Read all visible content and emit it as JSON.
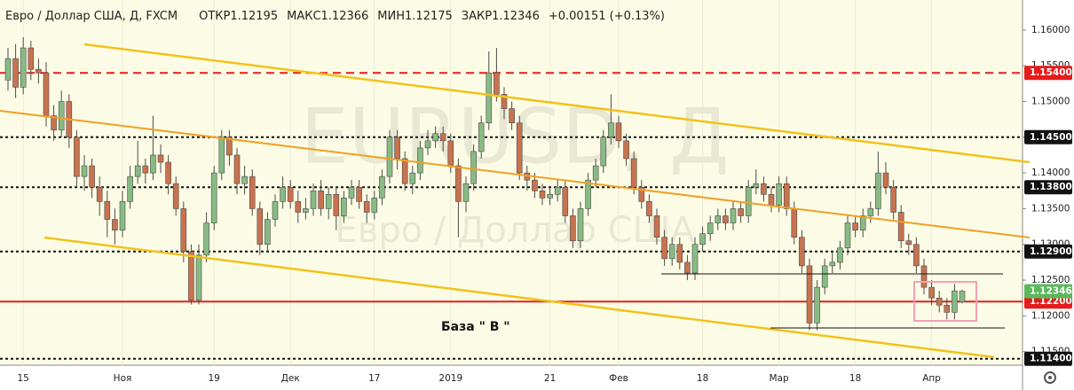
{
  "chart_data": {
    "type": "candlestick",
    "title": "Евро / Доллар США, Д, FXCM",
    "ohlc_labels": [
      "ОТКР",
      "МАКС",
      "МИН",
      "ЗАКР"
    ],
    "change_label": "+0.00151 (+0.13%)",
    "watermark": "EURUSD, Д",
    "watermark_sub": "Евро / Доллар США",
    "annotation": "База \" В \"",
    "categories": [
      null,
      null,
      "15",
      null,
      null,
      null,
      null,
      null,
      null,
      null,
      null,
      null,
      null,
      null,
      null,
      "Ноя",
      null,
      null,
      null,
      null,
      null,
      null,
      null,
      null,
      null,
      null,
      null,
      "19",
      null,
      null,
      null,
      null,
      null,
      null,
      null,
      null,
      null,
      "Дек",
      null,
      null,
      null,
      null,
      null,
      null,
      null,
      null,
      null,
      null,
      "17",
      null,
      null,
      null,
      null,
      null,
      null,
      null,
      null,
      null,
      "2019",
      null,
      null,
      null,
      null,
      null,
      null,
      null,
      null,
      null,
      null,
      null,
      null,
      "21",
      null,
      null,
      null,
      null,
      null,
      null,
      null,
      null,
      "Фев",
      null,
      null,
      null,
      null,
      null,
      null,
      null,
      null,
      null,
      null,
      "18",
      null,
      null,
      null,
      null,
      null,
      null,
      null,
      null,
      null,
      "Мар",
      null,
      null,
      null,
      null,
      null,
      null,
      null,
      null,
      null,
      "18",
      null,
      null,
      null,
      null,
      null,
      null,
      null,
      null,
      null,
      "Апр",
      null,
      null,
      null,
      null
    ],
    "open": [
      1.153,
      1.156,
      1.152,
      1.1575,
      1.1545,
      1.154,
      1.148,
      1.146,
      1.15,
      1.145,
      1.1395,
      1.141,
      1.138,
      1.136,
      1.1335,
      1.132,
      1.136,
      1.1395,
      1.141,
      1.14,
      1.1425,
      1.1415,
      1.1385,
      1.135,
      1.129,
      1.1222,
      1.1285,
      1.133,
      1.14,
      1.145,
      1.1425,
      1.1385,
      1.1395,
      1.135,
      1.13,
      1.1335,
      1.136,
      1.138,
      1.136,
      1.1345,
      1.135,
      1.1375,
      1.135,
      1.137,
      1.134,
      1.1365,
      1.138,
      1.136,
      1.1345,
      1.1365,
      1.1395,
      1.145,
      1.142,
      1.1385,
      1.14,
      1.1435,
      1.1445,
      1.1455,
      1.1445,
      1.141,
      1.136,
      1.1385,
      1.143,
      1.147,
      1.154,
      1.151,
      1.149,
      1.147,
      1.14,
      1.139,
      1.1375,
      1.1365,
      1.137,
      1.138,
      1.134,
      1.1305,
      1.135,
      1.139,
      1.141,
      1.145,
      1.147,
      1.1445,
      1.142,
      1.138,
      1.136,
      1.134,
      1.131,
      1.128,
      1.13,
      1.1275,
      1.126,
      1.13,
      1.1315,
      1.133,
      1.134,
      1.133,
      1.135,
      1.134,
      1.138,
      1.1385,
      1.137,
      1.1355,
      1.1385,
      1.135,
      1.131,
      1.127,
      1.119,
      1.124,
      1.127,
      1.1275,
      1.1295,
      1.133,
      1.132,
      1.134,
      1.135,
      1.14,
      1.138,
      1.1345,
      1.1305,
      1.13,
      1.127,
      1.124,
      1.1225,
      1.1215,
      1.1205,
      1.12195
    ],
    "high": [
      1.1575,
      1.158,
      1.159,
      1.1585,
      1.156,
      1.1555,
      1.1495,
      1.1515,
      1.151,
      1.146,
      1.1425,
      1.142,
      1.1395,
      1.1375,
      1.135,
      1.1375,
      1.141,
      1.1445,
      1.142,
      1.148,
      1.144,
      1.1425,
      1.1395,
      1.136,
      1.13,
      1.13,
      1.1345,
      1.141,
      1.146,
      1.146,
      1.1435,
      1.141,
      1.1405,
      1.136,
      1.1345,
      1.137,
      1.1395,
      1.139,
      1.1375,
      1.1365,
      1.1385,
      1.139,
      1.138,
      1.138,
      1.1375,
      1.139,
      1.139,
      1.137,
      1.1375,
      1.1405,
      1.146,
      1.146,
      1.143,
      1.141,
      1.1445,
      1.146,
      1.1465,
      1.1465,
      1.1455,
      1.142,
      1.1395,
      1.144,
      1.148,
      1.157,
      1.1575,
      1.152,
      1.15,
      1.148,
      1.141,
      1.14,
      1.1385,
      1.138,
      1.139,
      1.139,
      1.135,
      1.136,
      1.14,
      1.142,
      1.146,
      1.151,
      1.148,
      1.1455,
      1.143,
      1.139,
      1.137,
      1.135,
      1.132,
      1.131,
      1.131,
      1.1285,
      1.131,
      1.1325,
      1.134,
      1.135,
      1.135,
      1.136,
      1.136,
      1.139,
      1.1405,
      1.1395,
      1.138,
      1.1395,
      1.1395,
      1.136,
      1.132,
      1.128,
      1.125,
      1.128,
      1.129,
      1.1305,
      1.134,
      1.134,
      1.135,
      1.136,
      1.143,
      1.1415,
      1.139,
      1.1355,
      1.1315,
      1.131,
      1.128,
      1.125,
      1.1235,
      1.1225,
      1.1245,
      1.12366
    ],
    "low": [
      1.1515,
      1.1505,
      1.151,
      1.153,
      1.1525,
      1.1465,
      1.1445,
      1.145,
      1.1435,
      1.138,
      1.1375,
      1.1365,
      1.134,
      1.131,
      1.13,
      1.131,
      1.135,
      1.1385,
      1.1385,
      1.139,
      1.14,
      1.137,
      1.134,
      1.1275,
      1.1216,
      1.1216,
      1.1275,
      1.132,
      1.139,
      1.141,
      1.137,
      1.137,
      1.134,
      1.1285,
      1.129,
      1.1325,
      1.135,
      1.135,
      1.133,
      1.1335,
      1.134,
      1.134,
      1.1335,
      1.132,
      1.133,
      1.1355,
      1.135,
      1.133,
      1.1335,
      1.1355,
      1.1385,
      1.1405,
      1.1375,
      1.137,
      1.139,
      1.1425,
      1.1435,
      1.143,
      1.14,
      1.131,
      1.1345,
      1.1375,
      1.142,
      1.146,
      1.15,
      1.1475,
      1.146,
      1.139,
      1.1375,
      1.1365,
      1.1355,
      1.1355,
      1.136,
      1.133,
      1.1295,
      1.1295,
      1.134,
      1.138,
      1.14,
      1.144,
      1.1435,
      1.141,
      1.137,
      1.135,
      1.133,
      1.13,
      1.127,
      1.127,
      1.1265,
      1.125,
      1.125,
      1.129,
      1.1305,
      1.132,
      1.132,
      1.132,
      1.133,
      1.133,
      1.137,
      1.136,
      1.1345,
      1.1345,
      1.134,
      1.13,
      1.126,
      1.118,
      1.118,
      1.123,
      1.126,
      1.1265,
      1.1285,
      1.131,
      1.131,
      1.133,
      1.134,
      1.137,
      1.1335,
      1.1295,
      1.1285,
      1.126,
      1.123,
      1.1215,
      1.1205,
      1.1195,
      1.1195,
      1.12175
    ],
    "close": [
      1.156,
      1.152,
      1.1575,
      1.1545,
      1.154,
      1.148,
      1.146,
      1.15,
      1.145,
      1.1395,
      1.141,
      1.138,
      1.136,
      1.1335,
      1.132,
      1.136,
      1.1395,
      1.141,
      1.14,
      1.1425,
      1.1415,
      1.1385,
      1.135,
      1.129,
      1.1222,
      1.1285,
      1.133,
      1.14,
      1.145,
      1.1425,
      1.1385,
      1.1395,
      1.135,
      1.13,
      1.1335,
      1.136,
      1.138,
      1.136,
      1.1345,
      1.135,
      1.1375,
      1.135,
      1.137,
      1.134,
      1.1365,
      1.138,
      1.136,
      1.1345,
      1.1365,
      1.1395,
      1.145,
      1.142,
      1.1385,
      1.14,
      1.1435,
      1.1445,
      1.1455,
      1.1445,
      1.141,
      1.136,
      1.1385,
      1.143,
      1.147,
      1.154,
      1.151,
      1.149,
      1.147,
      1.14,
      1.139,
      1.1375,
      1.1365,
      1.137,
      1.138,
      1.134,
      1.1305,
      1.135,
      1.139,
      1.141,
      1.145,
      1.147,
      1.1445,
      1.142,
      1.138,
      1.136,
      1.134,
      1.131,
      1.128,
      1.13,
      1.1275,
      1.126,
      1.13,
      1.1315,
      1.133,
      1.134,
      1.133,
      1.135,
      1.134,
      1.138,
      1.1385,
      1.137,
      1.1355,
      1.1385,
      1.135,
      1.131,
      1.127,
      1.119,
      1.124,
      1.127,
      1.1275,
      1.1295,
      1.133,
      1.132,
      1.134,
      1.135,
      1.14,
      1.138,
      1.1345,
      1.1305,
      1.13,
      1.127,
      1.124,
      1.1225,
      1.1215,
      1.1205,
      1.1235,
      1.12346
    ],
    "up_color": "#88bb84",
    "down_color": "#c8734f",
    "last_color": "#5cb85c",
    "ylim": [
      1.1131,
      1.1642
    ],
    "yticks": [
      {
        "value": 1.16,
        "label": "1.16000"
      },
      {
        "value": 1.155,
        "label": "1.15500"
      },
      {
        "value": 1.15,
        "label": "1.15000"
      },
      {
        "value": 1.145,
        "label": "1.14500"
      },
      {
        "value": 1.14,
        "label": "1.14000"
      },
      {
        "value": 1.135,
        "label": "1.13500"
      },
      {
        "value": 1.13,
        "label": "1.13000"
      },
      {
        "value": 1.125,
        "label": "1.12500"
      },
      {
        "value": 1.12,
        "label": "1.12000"
      },
      {
        "value": 1.115,
        "label": "1.11500"
      }
    ],
    "levels": [
      {
        "value": 1.154,
        "label": "1.15400",
        "color": "#e51c1c",
        "line": "dashed"
      },
      {
        "value": 1.145,
        "label": "1.14500",
        "color": "#111111",
        "line": "dotted"
      },
      {
        "value": 1.138,
        "label": "1.13800",
        "color": "#111111",
        "line": "dotted"
      },
      {
        "value": 1.129,
        "label": "1.12900",
        "color": "#111111",
        "line": "dotted"
      },
      {
        "value": 1.122,
        "label": "1.12200",
        "color": "#e51c1c",
        "line": "solid"
      },
      {
        "value": 1.114,
        "label": "1.11400",
        "color": "#111111",
        "line": "dotted"
      }
    ]
  }
}
